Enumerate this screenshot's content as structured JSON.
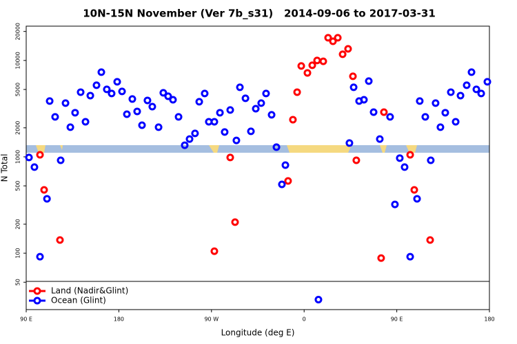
{
  "chart_data": {
    "type": "scatter",
    "title": "10N-15N November (Ver 7b_s31)   2014-09-06 to 2017-03-31",
    "x_label": "Longitude (deg E)",
    "y_label": "N Total",
    "xlim": [
      90,
      540
    ],
    "ylim": [
      26,
      22700
    ],
    "log_y": true,
    "legend": "lower left",
    "xticks": [
      {
        "value": 90,
        "label": "90 E"
      },
      {
        "value": 180,
        "label": "180"
      },
      {
        "value": 270,
        "label": "90 W"
      },
      {
        "value": 360,
        "label": "0"
      },
      {
        "value": 450,
        "label": "90 E"
      },
      {
        "value": 540,
        "label": "180"
      }
    ],
    "yticks": [
      50,
      100,
      200,
      500,
      1000,
      2000,
      5000,
      10000,
      20000
    ],
    "series": [
      {
        "name": "Land (Nadir&Glint)",
        "color": "#ff0000",
        "x": [
          103.4,
          107.4,
          122.8,
          272.8,
          288.2,
          292.9,
          344.4,
          349.1,
          353.2,
          357.2,
          363.2,
          367.9,
          372.6,
          378.6,
          383.3,
          388.0,
          392.7,
          397.4,
          402.7,
          407.4,
          410.7,
          434.8,
          437.5,
          463.0,
          467.0,
          482.4
        ],
        "values": [
          1050,
          454,
          137,
          105,
          985,
          210,
          562,
          2430,
          4690,
          8770,
          7430,
          8910,
          10000,
          9790,
          17200,
          15800,
          17200,
          11600,
          13200,
          6850,
          921,
          89,
          2910,
          1050,
          454,
          137
        ]
      },
      {
        "name": "Ocean (Glint)",
        "color": "#0000ff",
        "x": [
          92.7,
          98.0,
          103.4,
          110.2,
          112.8,
          118.1,
          123.5,
          128.2,
          132.9,
          137.5,
          142.9,
          147.6,
          152.3,
          158.3,
          163.0,
          168.3,
          173.0,
          178.4,
          183.1,
          187.8,
          193.1,
          197.8,
          202.5,
          207.8,
          212.5,
          218.6,
          223.2,
          227.9,
          232.6,
          238.0,
          244.0,
          248.7,
          254.0,
          258.1,
          263.4,
          267.4,
          272.8,
          278.2,
          282.8,
          288.2,
          294.2,
          297.6,
          303.0,
          308.3,
          313.0,
          318.3,
          323.0,
          328.4,
          333.1,
          338.4,
          341.8,
          373.9,
          404.0,
          408.1,
          413.4,
          418.1,
          422.8,
          427.5,
          433.5,
          443.5,
          448.2,
          452.9,
          457.6,
          463.0,
          469.7,
          472.3,
          477.7,
          483.0,
          487.7,
          492.4,
          497.1,
          502.5,
          507.2,
          511.9,
          517.9,
          522.6,
          527.3,
          532.0,
          538.0
        ],
        "values": [
          985,
          782,
          92,
          367,
          3790,
          2600,
          921,
          3610,
          2030,
          2870,
          4690,
          2310,
          4320,
          5530,
          7560,
          5010,
          4540,
          6010,
          4770,
          2770,
          3980,
          2960,
          2130,
          3850,
          3320,
          2030,
          4620,
          4250,
          3910,
          2600,
          1320,
          1530,
          1750,
          3730,
          4540,
          2310,
          2310,
          2870,
          1810,
          3060,
          1480,
          5270,
          4050,
          1840,
          3160,
          3610,
          4540,
          2730,
          1260,
          518,
          821,
          33,
          1390,
          5270,
          3790,
          3910,
          6110,
          2910,
          1530,
          2600,
          321,
          970,
          782,
          92,
          367,
          3790,
          2600,
          921,
          3610,
          2030,
          2870,
          4690,
          2310,
          4320,
          5530,
          7560,
          5010,
          4540,
          6010
        ]
      }
    ]
  }
}
